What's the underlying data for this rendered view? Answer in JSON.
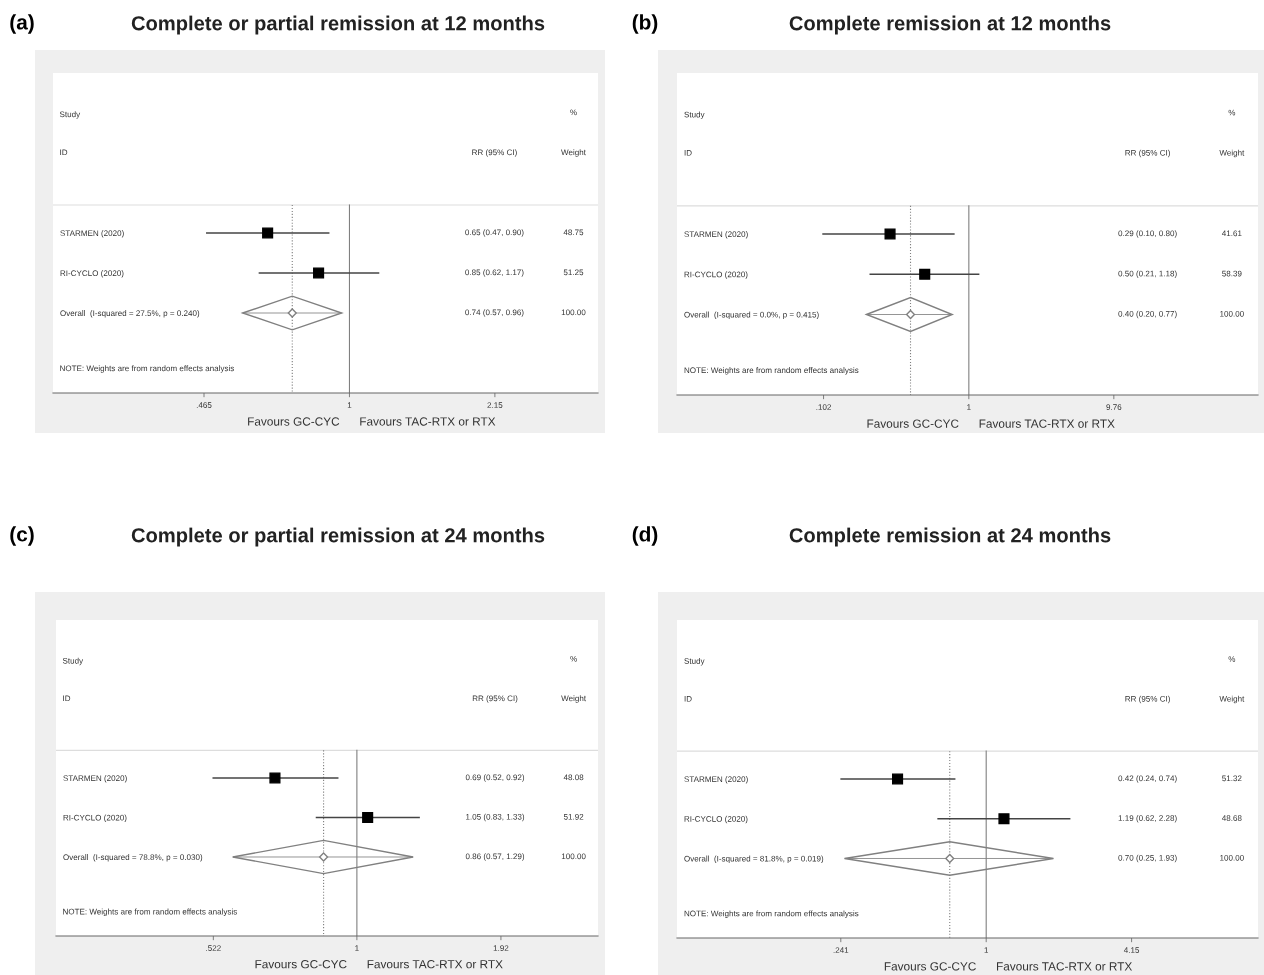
{
  "chart_data": [
    {
      "type": "scatter",
      "orientation": "horizontal",
      "title": "Complete or partial remission at 12 months",
      "categories": [
        "STARMEN (2020)",
        "RI-CYCLO (2020)",
        "Overall  (I-squared = 27.5%, p = 0.240)"
      ],
      "series": [
        {
          "color": "#000000",
          "marker": "square",
          "values": [
            0.65,
            0.85,
            null
          ],
          "errors": [
            [
              0.47,
              0.9
            ],
            [
              0.62,
              1.17
            ],
            null
          ]
        },
        {
          "color": "#808080",
          "marker": "diamond",
          "values": [
            null,
            null,
            0.74
          ],
          "errors": [
            null,
            null,
            [
              0.57,
              0.96
            ]
          ]
        }
      ],
      "xlim": [
        0.21,
        3.7
      ],
      "xticks": [
        {
          "value": 0.465,
          "label": ".465"
        },
        1,
        2.15
      ],
      "log": "x",
      "grid": false,
      "legend": false,
      "ref_lines": [
        {
          "axis": "x",
          "value": 1,
          "color": "#808080",
          "line_style": "solid"
        },
        {
          "axis": "x",
          "value": 0.74,
          "color": "#808080",
          "line_style": "dotted"
        }
      ],
      "annotations": [
        "(a)",
        "Study",
        "ID",
        "%",
        "RR (95% CI)",
        "Weight",
        "0.65 (0.47, 0.90)",
        "0.85 (0.62, 1.17)",
        "0.74 (0.57, 0.96)",
        "48.75",
        "51.25",
        "100.00",
        "NOTE: Weights are from random effects analysis",
        "Favours GC-CYC",
        "Favours TAC-RTX or RTX"
      ]
    },
    {
      "type": "scatter",
      "orientation": "horizontal",
      "title": "Complete remission at 12 months",
      "categories": [
        "STARMEN (2020)",
        "RI-CYCLO (2020)",
        "Overall  (I-squared = 0.0%, p = 0.415)"
      ],
      "series": [
        {
          "color": "#000000",
          "marker": "square",
          "values": [
            0.29,
            0.5,
            null
          ],
          "errors": [
            [
              0.1,
              0.8
            ],
            [
              0.21,
              1.18
            ],
            null
          ]
        },
        {
          "color": "#808080",
          "marker": "diamond",
          "values": [
            null,
            null,
            0.4
          ],
          "errors": [
            null,
            null,
            [
              0.2,
              0.77
            ]
          ]
        }
      ],
      "xlim": [
        0.0102,
        94
      ],
      "xticks": [
        {
          "value": 0.102,
          "label": ".102"
        },
        1,
        9.76
      ],
      "log": "x",
      "grid": false,
      "legend": false,
      "ref_lines": [
        {
          "axis": "x",
          "value": 1,
          "color": "#808080",
          "line_style": "solid"
        },
        {
          "axis": "x",
          "value": 0.4,
          "color": "#808080",
          "line_style": "dotted"
        }
      ],
      "annotations": [
        "(b)",
        "Study",
        "ID",
        "%",
        "RR (95% CI)",
        "Weight",
        "0.29 (0.10, 0.80)",
        "0.50 (0.21, 1.18)",
        "0.40 (0.20, 0.77)",
        "41.61",
        "58.39",
        "100.00",
        "NOTE: Weights are from random effects analysis",
        "Favours GC-CYC",
        "Favours TAC-RTX or RTX"
      ]
    },
    {
      "type": "scatter",
      "orientation": "horizontal",
      "title": "Complete or partial remission at 24 months",
      "categories": [
        "STARMEN (2020)",
        "RI-CYCLO (2020)",
        "Overall  (I-squared = 78.8%, p = 0.030)"
      ],
      "series": [
        {
          "color": "#000000",
          "marker": "square",
          "values": [
            0.69,
            1.05,
            null
          ],
          "errors": [
            [
              0.52,
              0.92
            ],
            [
              0.83,
              1.33
            ],
            null
          ]
        },
        {
          "color": "#808080",
          "marker": "diamond",
          "values": [
            null,
            null,
            0.86
          ],
          "errors": [
            null,
            null,
            [
              0.57,
              1.29
            ]
          ]
        }
      ],
      "xlim": [
        0.256,
        2.98
      ],
      "xticks": [
        {
          "value": 0.522,
          "label": ".522"
        },
        1,
        1.92
      ],
      "log": "x",
      "grid": false,
      "legend": false,
      "ref_lines": [
        {
          "axis": "x",
          "value": 1,
          "color": "#808080",
          "line_style": "solid"
        },
        {
          "axis": "x",
          "value": 0.86,
          "color": "#808080",
          "line_style": "dotted"
        }
      ],
      "annotations": [
        "(c)",
        "Study",
        "ID",
        "%",
        "RR (95% CI)",
        "Weight",
        "0.69 (0.52, 0.92)",
        "1.05 (0.83, 1.33)",
        "0.86 (0.57, 1.29)",
        "48.08",
        "51.92",
        "100.00",
        "NOTE: Weights are from random effects analysis",
        "Favours GC-CYC",
        "Favours TAC-RTX or RTX"
      ]
    },
    {
      "type": "scatter",
      "orientation": "horizontal",
      "title": "Complete remission at 24 months",
      "categories": [
        "STARMEN (2020)",
        "RI-CYCLO (2020)",
        "Overall  (I-squared = 81.8%, p = 0.019)"
      ],
      "series": [
        {
          "color": "#000000",
          "marker": "square",
          "values": [
            0.42,
            1.19,
            null
          ],
          "errors": [
            [
              0.24,
              0.74
            ],
            [
              0.62,
              2.28
            ],
            null
          ]
        },
        {
          "color": "#808080",
          "marker": "diamond",
          "values": [
            null,
            null,
            0.7
          ],
          "errors": [
            null,
            null,
            [
              0.25,
              1.93
            ]
          ]
        }
      ],
      "xlim": [
        0.0485,
        14.3
      ],
      "xticks": [
        {
          "value": 0.241,
          "label": ".241"
        },
        1,
        4.15
      ],
      "log": "x",
      "grid": false,
      "legend": false,
      "ref_lines": [
        {
          "axis": "x",
          "value": 1,
          "color": "#808080",
          "line_style": "solid"
        },
        {
          "axis": "x",
          "value": 0.7,
          "color": "#808080",
          "line_style": "dotted"
        }
      ],
      "annotations": [
        "(d)",
        "Study",
        "ID",
        "%",
        "RR (95% CI)",
        "Weight",
        "0.42 (0.24, 0.74)",
        "1.19 (0.62, 2.28)",
        "0.70 (0.25, 1.93)",
        "51.32",
        "48.68",
        "100.00",
        "NOTE: Weights are from random effects analysis",
        "Favours GC-CYC",
        "Favours TAC-RTX or RTX"
      ]
    }
  ]
}
